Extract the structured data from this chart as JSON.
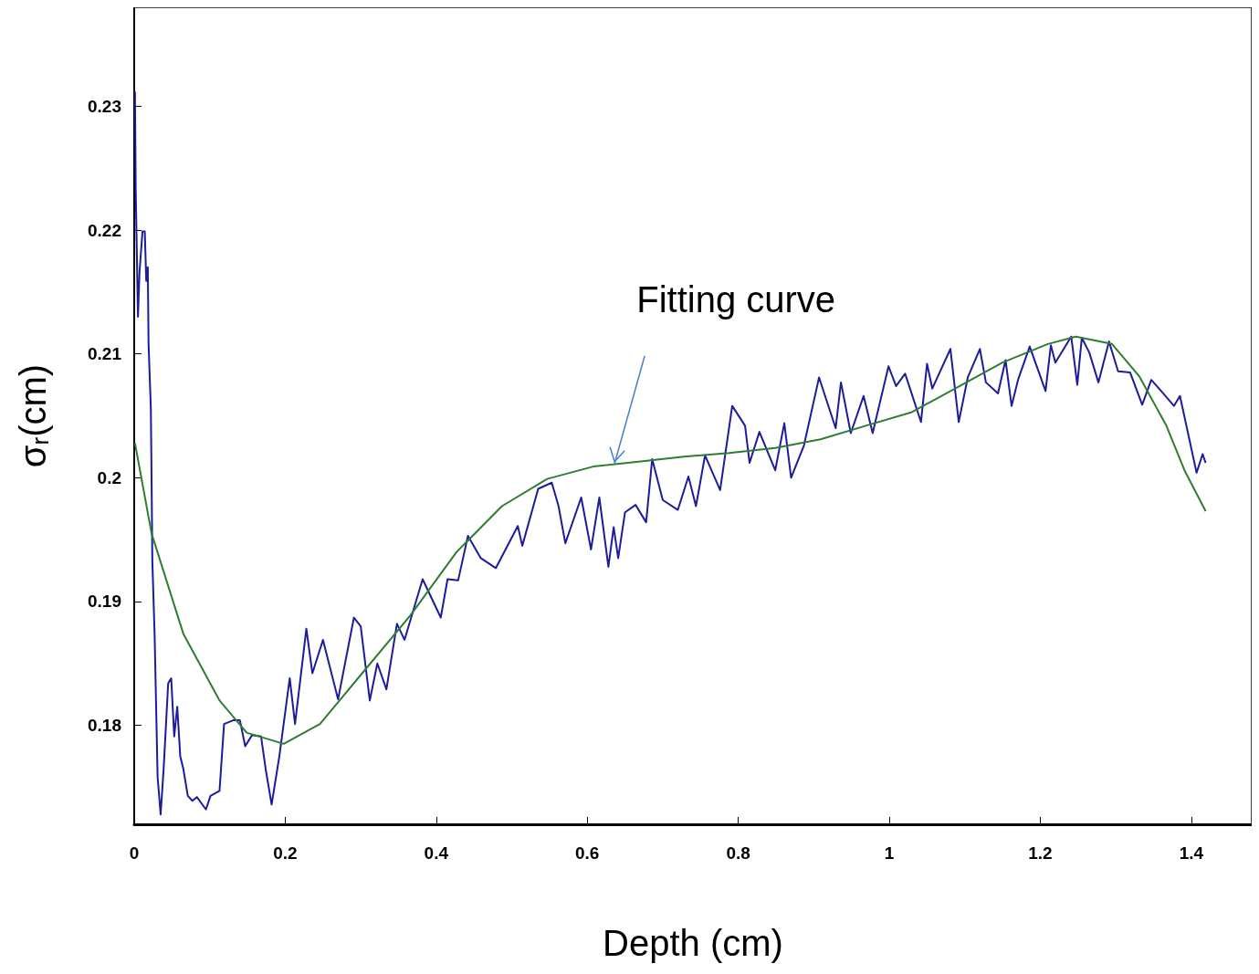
{
  "chart_data": {
    "type": "line",
    "xlabel": "Depth (cm)",
    "ylabel": "σ$_{r}$(cm)",
    "xlim": [
      0,
      1.48
    ],
    "ylim": [
      0.172,
      0.238
    ],
    "xticks": [
      0,
      0.2,
      0.4,
      0.6,
      0.8,
      1,
      1.2,
      1.4
    ],
    "yticks": [
      0.18,
      0.19,
      0.2,
      0.21,
      0.22,
      0.23
    ],
    "grid": false,
    "marker": "none",
    "line_style": "solid",
    "annotations": [
      {
        "text": "Fitting curve",
        "x": 0.635,
        "y": 0.201
      }
    ],
    "series": [
      {
        "color": "#1c1c9c",
        "x": [
          0.001,
          0.002,
          0.005,
          0.007,
          0.011,
          0.014,
          0.016,
          0.018,
          0.019,
          0.022,
          0.023,
          0.024,
          0.027,
          0.029,
          0.031,
          0.035,
          0.039,
          0.045,
          0.049,
          0.053,
          0.057,
          0.061,
          0.065,
          0.071,
          0.077,
          0.083,
          0.095,
          0.101,
          0.113,
          0.119,
          0.131,
          0.14,
          0.147,
          0.156,
          0.168,
          0.174,
          0.182,
          0.192,
          0.206,
          0.213,
          0.228,
          0.236,
          0.25,
          0.27,
          0.291,
          0.3,
          0.312,
          0.322,
          0.334,
          0.348,
          0.358,
          0.382,
          0.406,
          0.415,
          0.429,
          0.442,
          0.459,
          0.479,
          0.508,
          0.514,
          0.535,
          0.553,
          0.562,
          0.571,
          0.592,
          0.605,
          0.616,
          0.628,
          0.635,
          0.641,
          0.65,
          0.664,
          0.678,
          0.686,
          0.7,
          0.72,
          0.734,
          0.744,
          0.756,
          0.776,
          0.792,
          0.809,
          0.815,
          0.828,
          0.849,
          0.861,
          0.87,
          0.887,
          0.907,
          0.929,
          0.936,
          0.949,
          0.966,
          0.978,
          0.999,
          1.009,
          1.021,
          1.042,
          1.05,
          1.057,
          1.081,
          1.092,
          1.104,
          1.12,
          1.128,
          1.144,
          1.154,
          1.162,
          1.171,
          1.186,
          1.207,
          1.214,
          1.22,
          1.241,
          1.249,
          1.255,
          1.265,
          1.277,
          1.291,
          1.303,
          1.319,
          1.335,
          1.347,
          1.363,
          1.377,
          1.385,
          1.407,
          1.415,
          1.419
        ],
        "values": [
          0.2312,
          0.2232,
          0.213,
          0.2166,
          0.2199,
          0.2199,
          0.2159,
          0.217,
          0.2108,
          0.2057,
          0.1999,
          0.1933,
          0.1874,
          0.1816,
          0.1758,
          0.1728,
          0.1765,
          0.1834,
          0.1838,
          0.1791,
          0.1815,
          0.1775,
          0.1765,
          0.1743,
          0.1739,
          0.1742,
          0.1732,
          0.1743,
          0.1747,
          0.1801,
          0.1804,
          0.1804,
          0.1783,
          0.1792,
          0.1791,
          0.1765,
          0.1736,
          0.1774,
          0.1838,
          0.1801,
          0.1878,
          0.1842,
          0.1869,
          0.1821,
          0.1887,
          0.188,
          0.182,
          0.185,
          0.1829,
          0.1882,
          0.1869,
          0.1918,
          0.1887,
          0.1918,
          0.1917,
          0.1953,
          0.1935,
          0.1927,
          0.1961,
          0.1945,
          0.1991,
          0.1996,
          0.1977,
          0.1947,
          0.1984,
          0.1942,
          0.1984,
          0.1928,
          0.196,
          0.1935,
          0.1972,
          0.1978,
          0.1964,
          0.2015,
          0.1982,
          0.1974,
          0.2001,
          0.1977,
          0.2018,
          0.199,
          0.2058,
          0.2042,
          0.2012,
          0.2037,
          0.2006,
          0.2044,
          0.2,
          0.2026,
          0.2081,
          0.204,
          0.2077,
          0.2036,
          0.2066,
          0.2036,
          0.209,
          0.2074,
          0.2084,
          0.2045,
          0.2092,
          0.2072,
          0.2104,
          0.2045,
          0.2081,
          0.2104,
          0.2077,
          0.2068,
          0.2095,
          0.2058,
          0.208,
          0.2106,
          0.207,
          0.2107,
          0.2093,
          0.2114,
          0.2075,
          0.2113,
          0.2101,
          0.2077,
          0.211,
          0.2086,
          0.2085,
          0.2059,
          0.2079,
          0.2068,
          0.2058,
          0.2066,
          0.2004,
          0.2019,
          0.2012
        ]
      },
      {
        "type": "line",
        "color": "#2e7d32",
        "x": [
          0.001,
          0.023,
          0.065,
          0.113,
          0.149,
          0.198,
          0.246,
          0.306,
          0.366,
          0.427,
          0.487,
          0.547,
          0.608,
          0.668,
          0.728,
          0.788,
          0.849,
          0.909,
          0.969,
          1.03,
          1.09,
          1.15,
          1.21,
          1.247,
          1.295,
          1.331,
          1.367,
          1.391,
          1.419
        ],
        "values": [
          0.2028,
          0.1955,
          0.1874,
          0.182,
          0.1794,
          0.1785,
          0.1801,
          0.1845,
          0.1889,
          0.194,
          0.1977,
          0.1999,
          0.2009,
          0.2013,
          0.2017,
          0.202,
          0.2024,
          0.2031,
          0.2042,
          0.2053,
          0.2073,
          0.2093,
          0.2108,
          0.2114,
          0.2108,
          0.2082,
          0.2042,
          0.2006,
          0.1973
        ]
      }
    ]
  }
}
